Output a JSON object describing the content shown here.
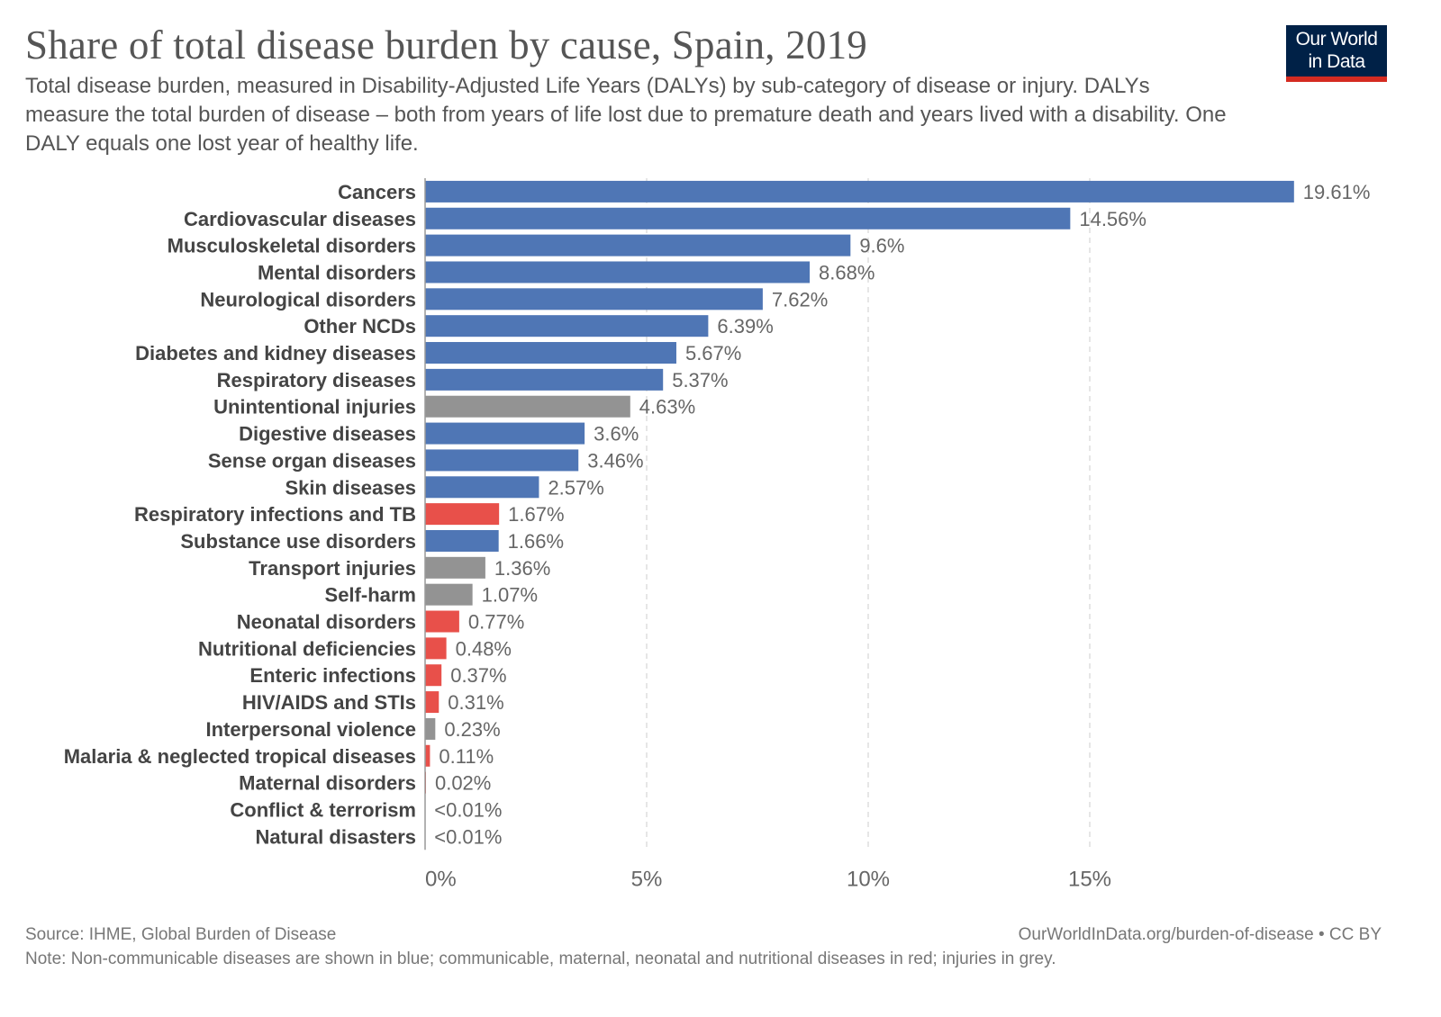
{
  "header": {
    "title": "Share of total disease burden by cause, Spain, 2019",
    "subtitle": "Total disease burden, measured in Disability-Adjusted Life Years (DALYs) by sub-category of disease or injury. DALYs measure the total burden of disease – both from years of life lost due to premature death and years lived with a disability. One DALY equals one lost year of healthy life.",
    "logo_line1": "Our World",
    "logo_line2": "in Data"
  },
  "footer": {
    "source": "Source: IHME, Global Burden of Disease",
    "url": "OurWorldInData.org/burden-of-disease • CC BY",
    "note": "Note: Non-communicable diseases are shown in blue; communicable, maternal, neonatal and nutritional diseases in red; injuries in grey."
  },
  "colors": {
    "ncd": "#4f76b5",
    "communicable": "#e8504a",
    "injury": "#939393",
    "grid": "#dddddd",
    "axis": "#999999"
  },
  "chart_data": {
    "type": "bar",
    "orientation": "horizontal",
    "title": "Share of total disease burden by cause, Spain, 2019",
    "xlabel": "",
    "ylabel": "",
    "xlim": [
      0,
      20
    ],
    "xticks": [
      0,
      5,
      10,
      15
    ],
    "xtick_labels": [
      "0%",
      "5%",
      "10%",
      "15%"
    ],
    "grid": "vertical dashed",
    "categories": [
      "Cancers",
      "Cardiovascular diseases",
      "Musculoskeletal disorders",
      "Mental disorders",
      "Neurological disorders",
      "Other NCDs",
      "Diabetes and kidney diseases",
      "Respiratory diseases",
      "Unintentional injuries",
      "Digestive diseases",
      "Sense organ diseases",
      "Skin diseases",
      "Respiratory infections and TB",
      "Substance use disorders",
      "Transport injuries",
      "Self-harm",
      "Neonatal disorders",
      "Nutritional deficiencies",
      "Enteric infections",
      "HIV/AIDS and STIs",
      "Interpersonal violence",
      "Malaria & neglected tropical diseases",
      "Maternal disorders",
      "Conflict & terrorism",
      "Natural disasters"
    ],
    "values": [
      19.61,
      14.56,
      9.6,
      8.68,
      7.62,
      6.39,
      5.67,
      5.37,
      4.63,
      3.6,
      3.46,
      2.57,
      1.67,
      1.66,
      1.36,
      1.07,
      0.77,
      0.48,
      0.37,
      0.31,
      0.23,
      0.11,
      0.02,
      0.005,
      0.005
    ],
    "value_labels": [
      "19.61%",
      "14.56%",
      "9.6%",
      "8.68%",
      "7.62%",
      "6.39%",
      "5.67%",
      "5.37%",
      "4.63%",
      "3.6%",
      "3.46%",
      "2.57%",
      "1.67%",
      "1.66%",
      "1.36%",
      "1.07%",
      "0.77%",
      "0.48%",
      "0.37%",
      "0.31%",
      "0.23%",
      "0.11%",
      "0.02%",
      "<0.01%",
      "<0.01%"
    ],
    "groups": [
      "ncd",
      "ncd",
      "ncd",
      "ncd",
      "ncd",
      "ncd",
      "ncd",
      "ncd",
      "injury",
      "ncd",
      "ncd",
      "ncd",
      "communicable",
      "ncd",
      "injury",
      "injury",
      "communicable",
      "communicable",
      "communicable",
      "communicable",
      "injury",
      "communicable",
      "communicable",
      "injury",
      "injury"
    ],
    "legend": "none (described in note)"
  }
}
